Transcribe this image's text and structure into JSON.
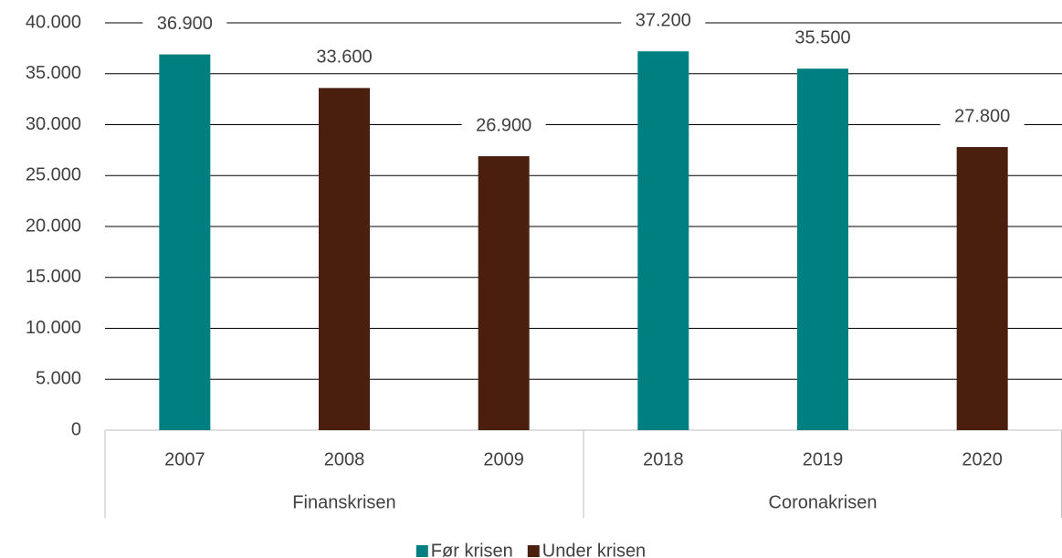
{
  "chart_data": {
    "type": "bar",
    "categories": [
      "2007",
      "2008",
      "2009",
      "2018",
      "2019",
      "2020"
    ],
    "group_labels": [
      "Finanskrisen",
      "Coronakrisen"
    ],
    "series": [
      {
        "name": "Før krisen",
        "color": "#007f80",
        "values": [
          36900,
          null,
          null,
          37200,
          35500,
          null
        ],
        "value_labels": [
          "36.900",
          null,
          null,
          "37.200",
          "35.500",
          null
        ]
      },
      {
        "name": "Under krisen",
        "color": "#4a1f0e",
        "values": [
          null,
          33600,
          26900,
          null,
          null,
          27800
        ],
        "value_labels": [
          null,
          "33.600",
          "26.900",
          null,
          null,
          "27.800"
        ]
      }
    ],
    "ylim": [
      0,
      40000
    ],
    "yticks": [
      {
        "value": 0,
        "label": "0"
      },
      {
        "value": 5000,
        "label": "5.000"
      },
      {
        "value": 10000,
        "label": "10.000"
      },
      {
        "value": 15000,
        "label": "15.000"
      },
      {
        "value": 20000,
        "label": "20.000"
      },
      {
        "value": 25000,
        "label": "25.000"
      },
      {
        "value": 30000,
        "label": "30.000"
      },
      {
        "value": 35000,
        "label": "35.000"
      },
      {
        "value": 40000,
        "label": "40.000"
      }
    ],
    "grid": true,
    "legend": "bottom"
  }
}
